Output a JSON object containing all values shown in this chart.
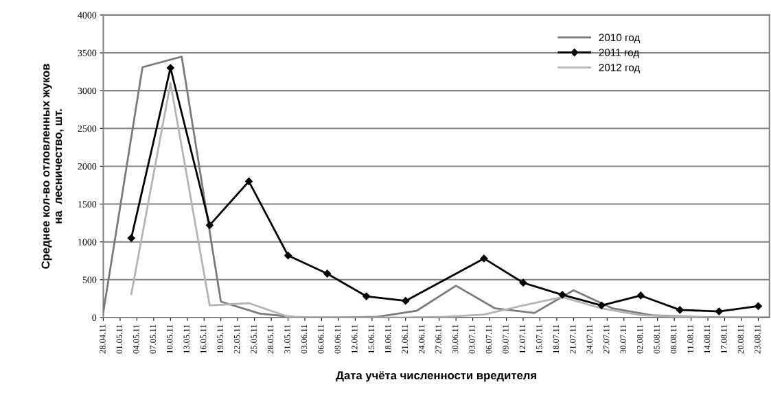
{
  "chart_data": {
    "type": "line",
    "xlabel": "Дата учёта численности вредителя",
    "ylabel": "Среднее кол-во отловленных жуков\nна  лесничество, шт.",
    "xlim": [
      "2011-04-28",
      "2011-08-25"
    ],
    "xticks": [
      {
        "value": "2011-04-28",
        "label": "28.04.11"
      },
      {
        "value": "2011-05-01",
        "label": "01.05.11"
      },
      {
        "value": "2011-05-04",
        "label": "04.05.11"
      },
      {
        "value": "2011-05-07",
        "label": "07.05.11"
      },
      {
        "value": "2011-05-10",
        "label": "10.05.11"
      },
      {
        "value": "2011-05-13",
        "label": "13.05.11"
      },
      {
        "value": "2011-05-16",
        "label": "16.05.11"
      },
      {
        "value": "2011-05-19",
        "label": "19.05.11"
      },
      {
        "value": "2011-05-22",
        "label": "22.05.11"
      },
      {
        "value": "2011-05-25",
        "label": "25.05.11"
      },
      {
        "value": "2011-05-28",
        "label": "28.05.11"
      },
      {
        "value": "2011-05-31",
        "label": "31.05.11"
      },
      {
        "value": "2011-06-03",
        "label": "03.06.11"
      },
      {
        "value": "2011-06-06",
        "label": "06.06.11"
      },
      {
        "value": "2011-06-09",
        "label": "09.06.11"
      },
      {
        "value": "2011-06-12",
        "label": "12.06.11"
      },
      {
        "value": "2011-06-15",
        "label": "15.06.11"
      },
      {
        "value": "2011-06-18",
        "label": "18.06.11"
      },
      {
        "value": "2011-06-21",
        "label": "21.06.11"
      },
      {
        "value": "2011-06-24",
        "label": "24.06.11"
      },
      {
        "value": "2011-06-27",
        "label": "27.06.11"
      },
      {
        "value": "2011-06-30",
        "label": "30.06.11"
      },
      {
        "value": "2011-07-03",
        "label": "03.07.11"
      },
      {
        "value": "2011-07-06",
        "label": "06.07.11"
      },
      {
        "value": "2011-07-09",
        "label": "09.07.11"
      },
      {
        "value": "2011-07-12",
        "label": "12.07.11"
      },
      {
        "value": "2011-07-15",
        "label": "15.07.11"
      },
      {
        "value": "2011-07-18",
        "label": "18.07.11"
      },
      {
        "value": "2011-07-21",
        "label": "21.07.11"
      },
      {
        "value": "2011-07-24",
        "label": "24.07.11"
      },
      {
        "value": "2011-07-27",
        "label": "27.07.11"
      },
      {
        "value": "2011-07-30",
        "label": "30.07.11"
      },
      {
        "value": "2011-08-02",
        "label": "02.08.11"
      },
      {
        "value": "2011-08-05",
        "label": "05.08.11"
      },
      {
        "value": "2011-08-08",
        "label": "08.08.11"
      },
      {
        "value": "2011-08-11",
        "label": "11.08.11"
      },
      {
        "value": "2011-08-14",
        "label": "14.08.11"
      },
      {
        "value": "2011-08-17",
        "label": "17.08.11"
      },
      {
        "value": "2011-08-20",
        "label": "20.08.11"
      },
      {
        "value": "2011-08-23",
        "label": "23.08.11"
      }
    ],
    "ylim": [
      0,
      4000
    ],
    "yticks": [
      0,
      500,
      1000,
      1500,
      2000,
      2500,
      3000,
      3500,
      4000
    ],
    "grid": "y",
    "legend": "top right",
    "line_style": "solid",
    "series": [
      {
        "name": "2010 год",
        "color": "#7a7a7a",
        "marker": "none",
        "x": [
          "2011-04-28",
          "2011-05-05",
          "2011-05-12",
          "2011-05-19",
          "2011-05-26",
          "2011-06-02",
          "2011-06-09",
          "2011-06-16",
          "2011-06-23",
          "2011-06-30",
          "2011-07-07",
          "2011-07-14",
          "2011-07-21",
          "2011-07-28",
          "2011-08-04",
          "2011-08-11",
          "2011-08-18",
          "2011-08-25"
        ],
        "values": [
          70,
          3310,
          3450,
          210,
          50,
          0,
          0,
          10,
          90,
          420,
          120,
          60,
          360,
          120,
          30,
          10,
          0,
          0
        ]
      },
      {
        "name": "2011 год",
        "color": "#000000",
        "marker": "diamond",
        "x": [
          "2011-05-03",
          "2011-05-10",
          "2011-05-17",
          "2011-05-24",
          "2011-05-31",
          "2011-06-07",
          "2011-06-14",
          "2011-06-21",
          "2011-07-05",
          "2011-07-12",
          "2011-07-19",
          "2011-07-26",
          "2011-08-02",
          "2011-08-09",
          "2011-08-16",
          "2011-08-23"
        ],
        "values": [
          1050,
          3300,
          1220,
          1800,
          820,
          580,
          280,
          220,
          780,
          460,
          300,
          160,
          290,
          100,
          80,
          150
        ]
      },
      {
        "name": "2012 год",
        "color": "#b4b4b4",
        "marker": "none",
        "x": [
          "2011-05-03",
          "2011-05-10",
          "2011-05-17",
          "2011-05-24",
          "2011-05-31",
          "2011-06-07",
          "2011-06-14",
          "2011-06-21",
          "2011-06-28",
          "2011-07-05",
          "2011-07-12",
          "2011-07-19",
          "2011-07-26",
          "2011-08-02",
          "2011-08-09",
          "2011-08-16",
          "2011-08-23"
        ],
        "values": [
          310,
          3100,
          160,
          190,
          10,
          0,
          0,
          0,
          10,
          40,
          160,
          270,
          120,
          30,
          10,
          0,
          0
        ]
      }
    ]
  }
}
